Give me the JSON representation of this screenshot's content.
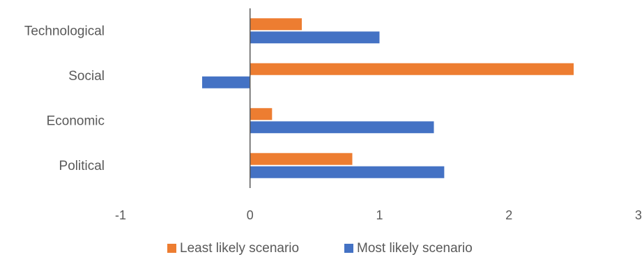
{
  "chart_data": {
    "type": "bar",
    "orientation": "horizontal",
    "categories": [
      "Technological",
      "Social",
      "Economic",
      "Political"
    ],
    "series": [
      {
        "name": "Least likely scenario",
        "color": "#ED7D31",
        "values": [
          0.4,
          2.5,
          0.17,
          0.79
        ]
      },
      {
        "name": "Most likely scenario",
        "color": "#4472C4",
        "values": [
          1.0,
          -0.37,
          1.42,
          1.5
        ]
      }
    ],
    "xlim": [
      -1,
      3
    ],
    "xticks": [
      "-1",
      "0",
      "1",
      "2",
      "3"
    ],
    "grid": false,
    "legend_position": "bottom"
  }
}
